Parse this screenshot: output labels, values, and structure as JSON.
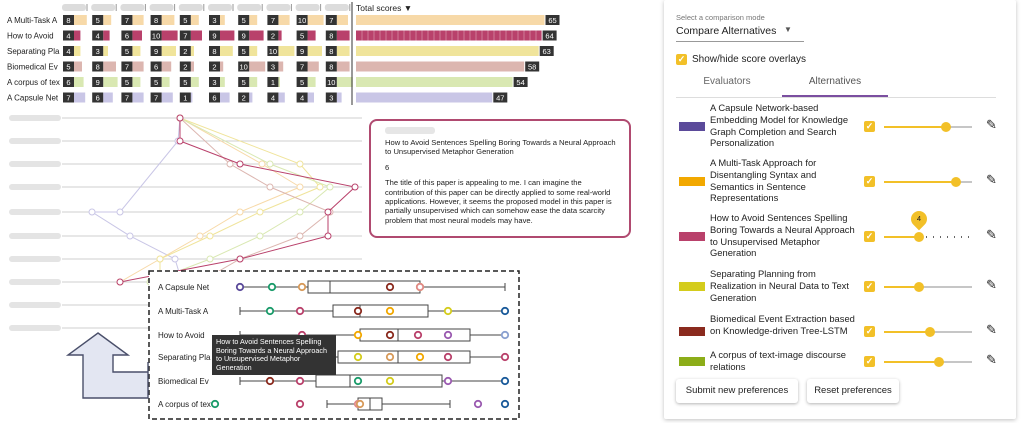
{
  "total_scores_label": "Total scores ▼",
  "score_rows": [
    {
      "label": "A Multi-Task A",
      "scores": [
        8,
        5,
        7,
        8,
        5,
        3,
        5,
        7,
        10,
        7
      ],
      "total": 65,
      "color": "#f7d9a8"
    },
    {
      "label": "How to Avoid",
      "scores": [
        4,
        4,
        6,
        10,
        7,
        9,
        9,
        2,
        5,
        8
      ],
      "total": 64,
      "color": "#b9416b"
    },
    {
      "label": "Separating Pla",
      "scores": [
        4,
        3,
        5,
        9,
        2,
        8,
        5,
        10,
        9,
        8
      ],
      "total": 63,
      "color": "#f0e49b"
    },
    {
      "label": "Biomedical Ev",
      "scores": [
        5,
        8,
        7,
        6,
        2,
        2,
        10,
        3,
        7,
        8
      ],
      "total": 58,
      "color": "#dcb6b0"
    },
    {
      "label": "A corpus of tex",
      "scores": [
        6,
        9,
        5,
        5,
        5,
        3,
        5,
        1,
        5,
        10
      ],
      "total": 54,
      "color": "#d9e8b2"
    },
    {
      "label": "A Capsule Net",
      "scores": [
        7,
        6,
        7,
        7,
        1,
        6,
        2,
        4,
        4,
        3
      ],
      "total": 47,
      "color": "#c9c6e6"
    }
  ],
  "callout": {
    "title": "How to Avoid Sentences Spelling Boring Towards a Neural Approach to Unsupervised Metaphor Generation",
    "score": "6",
    "comment": "The title of this paper is appealing to me. I can imagine the contribution of this paper can be directly applied to some real-world applications. However, it seems the proposed model in this paper is partially unsupervised which can somehow ease the data scarcity problem that most neural models may have."
  },
  "boxplot": {
    "labels": [
      "A Capsule Net",
      "A Multi-Task A",
      "How to Avoid",
      "Separating Pla",
      "Biomedical Ev",
      "A corpus of tex"
    ],
    "tooltip": "How to Avoid Sentences Spelling Boring Towards a Neural Approach to Unsupervised Metaphor Generation"
  },
  "panel": {
    "mode_label": "Select a comparison mode",
    "mode_value": "Compare Alternatives",
    "overlay_label": "Show/hide score overlays",
    "tabs": [
      "Evaluators",
      "Alternatives"
    ],
    "alternatives": [
      {
        "text": "A Capsule Network-based Embedding Model for Knowledge Graph Completion and Search Personalization",
        "color": "#5b4a9a",
        "weight": 0.7
      },
      {
        "text": "A Multi-Task Approach for Disentangling Syntax and Semantics in Sentence Representations",
        "color": "#f2a800",
        "weight": 0.82
      },
      {
        "text": "How to Avoid Sentences Spelling Boring Towards a Neural Approach to Unsupervised Metaphor Generation",
        "color": "#b9416b",
        "weight": 0.4
      },
      {
        "text": "Separating Planning from Realization in Neural Data to Text Generation",
        "color": "#d4cc1c",
        "weight": 0.4
      },
      {
        "text": "Biomedical Event Extraction based on Knowledge-driven Tree-LSTM",
        "color": "#8a2a1e",
        "weight": 0.52
      },
      {
        "text": "A corpus of text-image discourse relations",
        "color": "#8cad18",
        "weight": 0.62
      }
    ],
    "slider_tip": "4",
    "submit_label": "Submit new preferences",
    "reset_label": "Reset preferences"
  }
}
